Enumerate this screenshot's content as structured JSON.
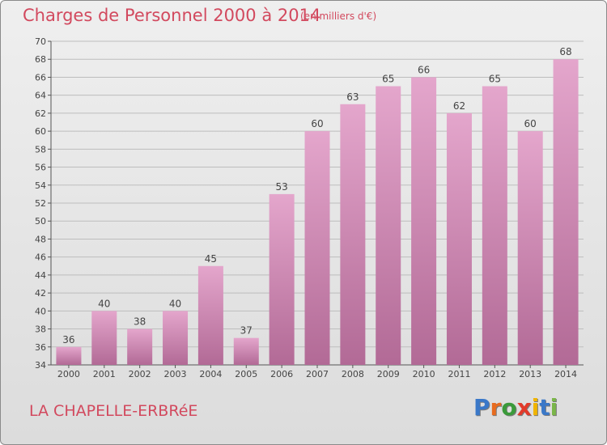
{
  "header": {
    "title": "Charges de Personnel 2000 à 2014",
    "subtitle": "(en milliers d'€)"
  },
  "footer": {
    "commune": "LA CHAPELLE-ERBRéE",
    "logo_letters": [
      {
        "ch": "P",
        "color": "#3a78c8"
      },
      {
        "ch": "r",
        "color": "#e86b1f"
      },
      {
        "ch": "o",
        "color": "#3a9a3a"
      },
      {
        "ch": "x",
        "color": "#e23a2a"
      },
      {
        "ch": "i",
        "color": "#f0b400"
      },
      {
        "ch": "t",
        "color": "#3a78c8"
      },
      {
        "ch": "i",
        "color": "#7ab648"
      }
    ]
  },
  "colors": {
    "bar_top": "#e4a6cc",
    "bar_bottom": "#b26a96",
    "accent": "#d2495e"
  },
  "chart_data": {
    "type": "bar",
    "categories": [
      "2000",
      "2001",
      "2002",
      "2003",
      "2004",
      "2005",
      "2006",
      "2007",
      "2008",
      "2009",
      "2010",
      "2011",
      "2012",
      "2013",
      "2014"
    ],
    "values": [
      36,
      40,
      38,
      40,
      45,
      37,
      53,
      60,
      63,
      65,
      66,
      62,
      65,
      60,
      68
    ],
    "title": "Charges de Personnel 2000 à 2014",
    "subtitle": "(en milliers d'€)",
    "ylim": [
      34,
      70
    ],
    "yticks": [
      34,
      36,
      38,
      40,
      42,
      44,
      46,
      48,
      50,
      52,
      54,
      56,
      58,
      60,
      62,
      64,
      66,
      68,
      70
    ],
    "grid": true
  }
}
